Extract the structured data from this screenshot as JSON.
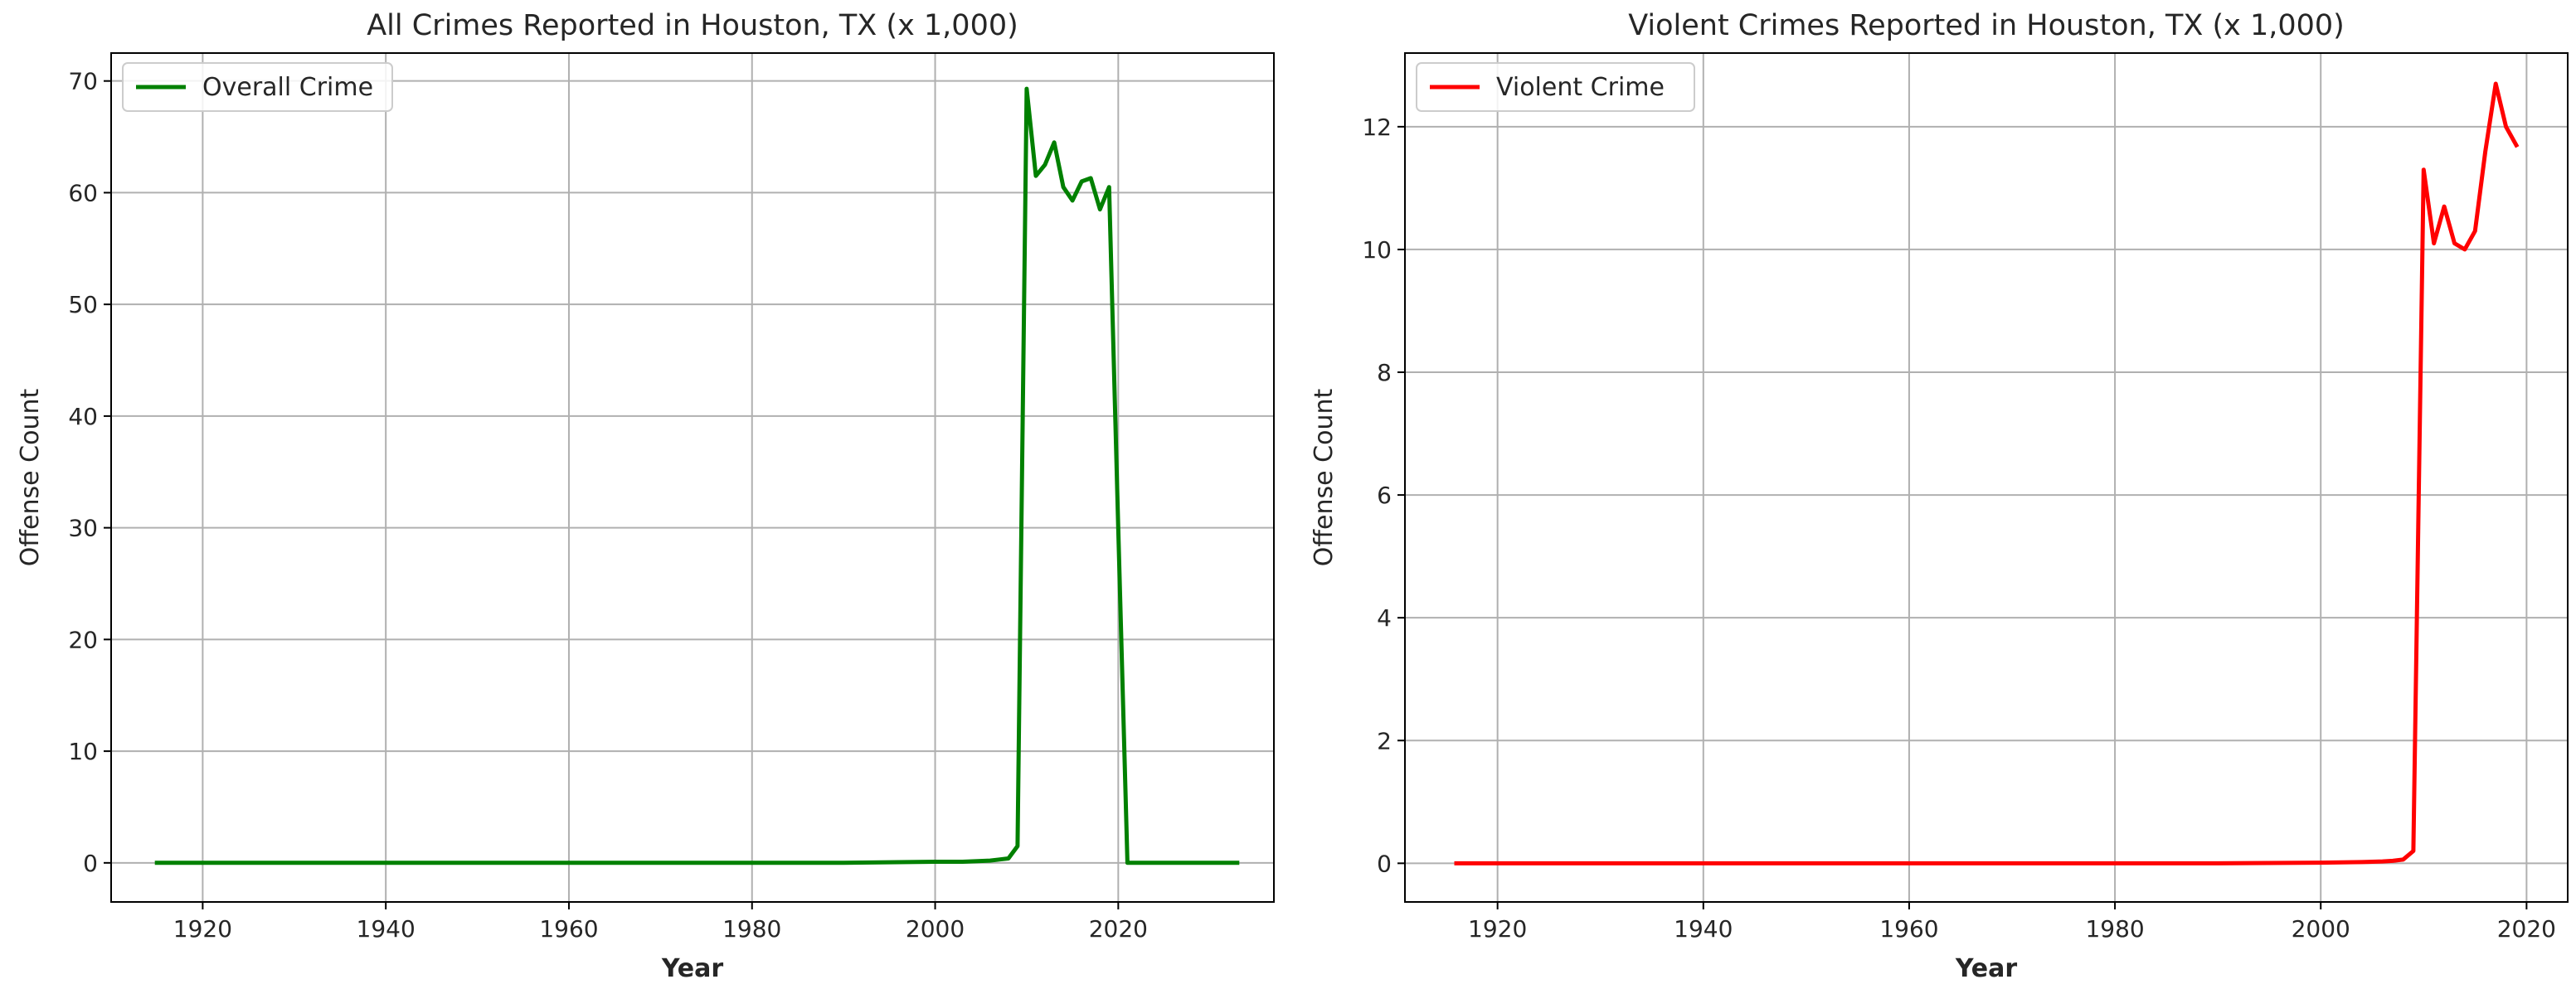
{
  "chart_data": [
    {
      "type": "line",
      "title": "All Crimes Reported in Houston, TX (x 1,000)",
      "xlabel": "Year",
      "ylabel": "Offense Count",
      "xlim": [
        1910,
        2037
      ],
      "ylim": [
        -3.5,
        72.5
      ],
      "xticks": [
        1920,
        1940,
        1960,
        1980,
        2000,
        2020
      ],
      "yticks": [
        0,
        10,
        20,
        30,
        40,
        50,
        60,
        70
      ],
      "grid": true,
      "legend_position": "top-left",
      "series": [
        {
          "name": "Overall Crime",
          "color": "#008000",
          "x": [
            1915,
            1950,
            1990,
            2000,
            2003,
            2006,
            2007,
            2008,
            2009,
            2010,
            2011,
            2012,
            2013,
            2014,
            2015,
            2016,
            2017,
            2018,
            2019,
            2020,
            2021,
            2022,
            2025,
            2030,
            2033
          ],
          "y": [
            0,
            0,
            0,
            0.1,
            0.1,
            0.2,
            0.3,
            0.4,
            1.5,
            69.3,
            61.5,
            62.5,
            64.5,
            60.5,
            59.3,
            61,
            61.3,
            58.5,
            60.5,
            30,
            0,
            0,
            0,
            0,
            0
          ]
        }
      ]
    },
    {
      "type": "line",
      "title": "Violent Crimes Reported in Houston, TX (x 1,000)",
      "xlabel": "Year",
      "ylabel": "Offense Count",
      "xlim": [
        1911,
        2024
      ],
      "ylim": [
        -0.63,
        13.2
      ],
      "xticks": [
        1920,
        1940,
        1960,
        1980,
        2000,
        2020
      ],
      "yticks": [
        0,
        2,
        4,
        6,
        8,
        10,
        12
      ],
      "grid": true,
      "legend_position": "top-left",
      "series": [
        {
          "name": "Violent Crime",
          "color": "#ff0000",
          "x": [
            1916,
            1950,
            1990,
            2000,
            2004,
            2006,
            2007,
            2008,
            2009,
            2010,
            2011,
            2012,
            2013,
            2014,
            2015,
            2016,
            2017,
            2018,
            2019
          ],
          "y": [
            0,
            0,
            0,
            0.01,
            0.02,
            0.03,
            0.04,
            0.06,
            0.2,
            11.3,
            10.1,
            10.7,
            10.1,
            10.0,
            10.3,
            11.6,
            12.7,
            12.0,
            11.7
          ]
        }
      ]
    }
  ]
}
